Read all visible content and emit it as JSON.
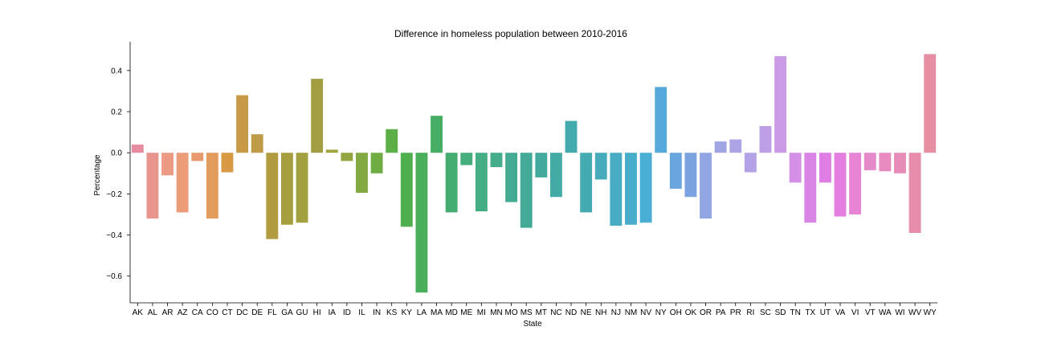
{
  "chart_data": {
    "type": "bar",
    "title": "Difference in homeless population between 2010-2016",
    "xlabel": "State",
    "ylabel": "Percentage",
    "ylim": [
      -0.73,
      0.54
    ],
    "yticks": [
      -0.6,
      -0.4,
      -0.2,
      0.0,
      0.2,
      0.4
    ],
    "ytick_labels": [
      "−0.6",
      "−0.4",
      "−0.2",
      "0.0",
      "0.2",
      "0.4"
    ],
    "grid": false,
    "legend": "none",
    "categories": [
      "AK",
      "AL",
      "AR",
      "AZ",
      "CA",
      "CO",
      "CT",
      "DC",
      "DE",
      "FL",
      "GA",
      "GU",
      "HI",
      "IA",
      "ID",
      "IL",
      "IN",
      "KS",
      "KY",
      "LA",
      "MA",
      "MD",
      "ME",
      "MI",
      "MN",
      "MO",
      "MS",
      "MT",
      "NC",
      "ND",
      "NE",
      "NH",
      "NJ",
      "NM",
      "NV",
      "NY",
      "OH",
      "OK",
      "OR",
      "PA",
      "PR",
      "RI",
      "SC",
      "SD",
      "TN",
      "TX",
      "UT",
      "VA",
      "VI",
      "VT",
      "WA",
      "WI",
      "WV",
      "WY"
    ],
    "values": [
      0.04,
      -0.32,
      -0.11,
      -0.29,
      -0.04,
      -0.32,
      -0.095,
      0.28,
      0.09,
      -0.42,
      -0.35,
      -0.34,
      0.36,
      0.015,
      -0.04,
      -0.195,
      -0.1,
      0.115,
      -0.36,
      -0.68,
      0.18,
      -0.29,
      -0.06,
      -0.285,
      -0.07,
      -0.24,
      -0.365,
      -0.12,
      -0.215,
      0.155,
      -0.29,
      -0.13,
      -0.355,
      -0.35,
      -0.34,
      0.32,
      -0.175,
      -0.215,
      -0.32,
      0.055,
      0.065,
      -0.095,
      0.13,
      0.47,
      -0.145,
      -0.34,
      -0.145,
      -0.31,
      -0.3,
      -0.085,
      -0.09,
      -0.1,
      -0.39,
      0.48
    ],
    "colors": [
      "#e78ba0",
      "#e8958e",
      "#ec9a84",
      "#eb9c78",
      "#e69a6d",
      "#e49b5e",
      "#d89a45",
      "#c89a48",
      "#bf9a47",
      "#b19c3f",
      "#a79e3f",
      "#a3a03f",
      "#a19f41",
      "#9ea440",
      "#93a540",
      "#82a942",
      "#6fac43",
      "#5cae47",
      "#4fae4e",
      "#4aae5b",
      "#47ae66",
      "#46ad72",
      "#46ad7c",
      "#44ad84",
      "#43ac8b",
      "#43ab91",
      "#43aa97",
      "#43aa9d",
      "#44aaa5",
      "#45aaac",
      "#45abb3",
      "#46abba",
      "#47acc3",
      "#48accb",
      "#4aadd4",
      "#55a9db",
      "#6aa6de",
      "#7ba3e0",
      "#91a5e3",
      "#a0a5e4",
      "#aba4e5",
      "#b3a2e5",
      "#bc9fe5",
      "#ca9ae6",
      "#d390e6",
      "#d985e5",
      "#df7de4",
      "#e47fdf",
      "#e683d4",
      "#e58ac9",
      "#e78bc0",
      "#e78cb6",
      "#e68dac",
      "#e68fa2"
    ]
  }
}
